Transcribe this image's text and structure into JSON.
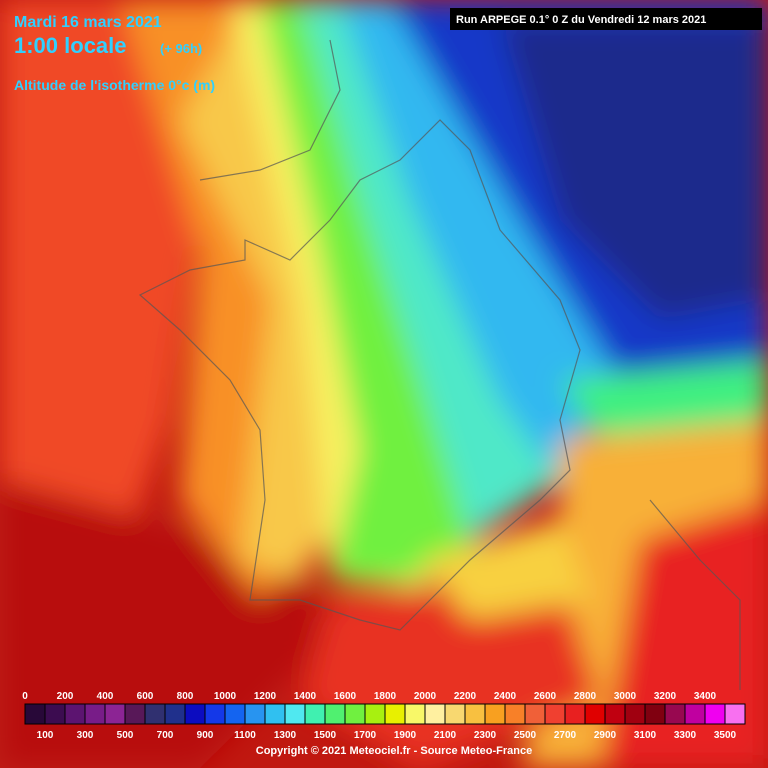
{
  "header": {
    "date": "Mardi 16 mars 2021",
    "time": "1:00 locale",
    "lead": "(+ 96h)",
    "parameter": "Altitude de l'isotherme 0°c (m)",
    "run": "Run ARPEGE 0.1° 0 Z du Vendredi 12 mars 2021"
  },
  "footer": {
    "copyright": "Copyright © 2021 Meteociel.fr - Source Meteo-France"
  },
  "legend": {
    "items": [
      {
        "value": 0,
        "color": "#280838"
      },
      {
        "value": 100,
        "color": "#3c0c50"
      },
      {
        "value": 200,
        "color": "#5c1470"
      },
      {
        "value": 300,
        "color": "#781c88"
      },
      {
        "value": 400,
        "color": "#8c2494"
      },
      {
        "value": 500,
        "color": "#581858"
      },
      {
        "value": 600,
        "color": "#303070"
      },
      {
        "value": 700,
        "color": "#20308c"
      },
      {
        "value": 800,
        "color": "#0c0cc0"
      },
      {
        "value": 900,
        "color": "#1438e8"
      },
      {
        "value": 1000,
        "color": "#1464f0"
      },
      {
        "value": 1100,
        "color": "#2894f0"
      },
      {
        "value": 1200,
        "color": "#30c0f0"
      },
      {
        "value": 1300,
        "color": "#50e8f0"
      },
      {
        "value": 1400,
        "color": "#40f0b0"
      },
      {
        "value": 1500,
        "color": "#50f070"
      },
      {
        "value": 1600,
        "color": "#70f040"
      },
      {
        "value": 1700,
        "color": "#a8f010"
      },
      {
        "value": 1800,
        "color": "#e8f000"
      },
      {
        "value": 1900,
        "color": "#f8f868"
      },
      {
        "value": 2000,
        "color": "#fff0a0"
      },
      {
        "value": 2100,
        "color": "#f8d870"
      },
      {
        "value": 2200,
        "color": "#f8c040"
      },
      {
        "value": 2300,
        "color": "#f8a020"
      },
      {
        "value": 2400,
        "color": "#f88028"
      },
      {
        "value": 2500,
        "color": "#f06038"
      },
      {
        "value": 2600,
        "color": "#f04030"
      },
      {
        "value": 2700,
        "color": "#e82020"
      },
      {
        "value": 2800,
        "color": "#e00000"
      },
      {
        "value": 2900,
        "color": "#c00010"
      },
      {
        "value": 3000,
        "color": "#a00010"
      },
      {
        "value": 3100,
        "color": "#800010"
      },
      {
        "value": 3200,
        "color": "#980850"
      },
      {
        "value": 3300,
        "color": "#c000a0"
      },
      {
        "value": 3400,
        "color": "#f000f0"
      },
      {
        "value": 3500,
        "color": "#f870f0"
      }
    ]
  }
}
